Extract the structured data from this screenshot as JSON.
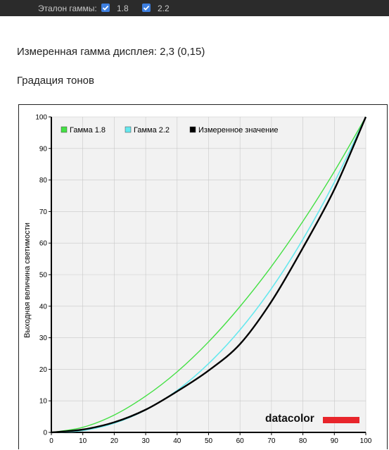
{
  "toolbar": {
    "gamma_label": "Эталон гаммы:",
    "options": [
      {
        "label": "1.8",
        "checked": true
      },
      {
        "label": "2.2",
        "checked": true
      }
    ]
  },
  "measured_text": "Измеренная гамма дисплея: 2,3 (0,15)",
  "section_title": "Градация тонов",
  "logo_text": "datacolor",
  "colors": {
    "gamma18": "#44e044",
    "gamma22": "#66e8ee",
    "measured": "#000000",
    "checkbox": "#3d7fe0",
    "logo_bar": "#e8252b"
  },
  "chart_data": {
    "type": "line",
    "ylabel": "Выходная величина светимости",
    "xlabel": "",
    "xlim": [
      0,
      100
    ],
    "ylim": [
      0,
      100
    ],
    "x_ticks": [
      0,
      10,
      20,
      30,
      40,
      50,
      60,
      70,
      80,
      90,
      100
    ],
    "y_ticks": [
      0,
      10,
      20,
      30,
      40,
      50,
      60,
      70,
      80,
      90,
      100
    ],
    "grid": true,
    "legend_position": "top-left",
    "x": [
      0,
      10,
      20,
      30,
      40,
      50,
      60,
      70,
      80,
      90,
      100
    ],
    "series": [
      {
        "name": "Гамма 1.8",
        "color": "#44e044",
        "values": [
          0,
          1.6,
          5.5,
          11.5,
          19.2,
          28.7,
          39.9,
          52.6,
          66.9,
          82.7,
          100
        ]
      },
      {
        "name": "Гамма 2.2",
        "color": "#66e8ee",
        "values": [
          0,
          0.6,
          2.9,
          7.1,
          13.3,
          21.8,
          32.5,
          45.6,
          61.2,
          79.3,
          100
        ]
      },
      {
        "name": "Измеренное значение",
        "color": "#000000",
        "values": [
          0,
          0.9,
          3.2,
          7.2,
          13.0,
          19.6,
          28.0,
          41.5,
          58.5,
          77.0,
          100
        ]
      }
    ]
  }
}
